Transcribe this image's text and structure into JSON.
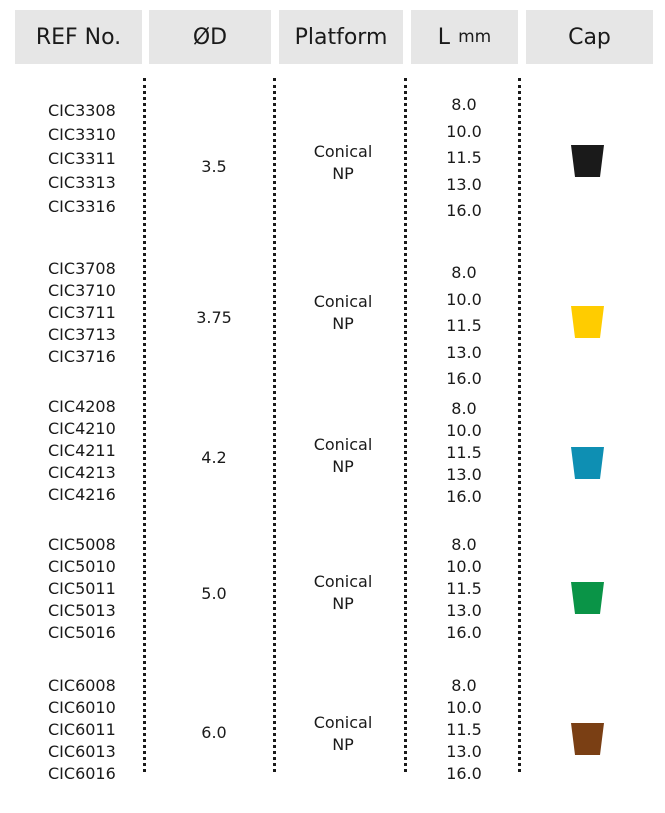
{
  "headers": {
    "ref": "REF No.",
    "diameter_symbol": "ØD",
    "platform": "Platform",
    "length": "L",
    "length_unit": "mm",
    "cap": "Cap"
  },
  "groups": [
    {
      "refs": [
        "CIC3308",
        "CIC3310",
        "CIC3311",
        "CIC3313",
        "CIC3316"
      ],
      "diameter": "3.5",
      "platform_line1": "Conical",
      "platform_line2": "NP",
      "lengths": [
        "8.0",
        "10.0",
        "11.5",
        "13.0",
        "16.0"
      ],
      "cap_color": "#1a1a1a"
    },
    {
      "refs": [
        "CIC3708",
        "CIC3710",
        "CIC3711",
        "CIC3713",
        "CIC3716"
      ],
      "diameter": "3.75",
      "platform_line1": "Conical",
      "platform_line2": "NP",
      "lengths": [
        "8.0",
        "10.0",
        "11.5",
        "13.0",
        "16.0"
      ],
      "cap_color": "#ffcc00"
    },
    {
      "refs": [
        "CIC4208",
        "CIC4210",
        "CIC4211",
        "CIC4213",
        "CIC4216"
      ],
      "diameter": "4.2",
      "platform_line1": "Conical",
      "platform_line2": "NP",
      "lengths": [
        "8.0",
        "10.0",
        "11.5",
        "13.0",
        "16.0"
      ],
      "cap_color": "#0e8fb3"
    },
    {
      "refs": [
        "CIC5008",
        "CIC5010",
        "CIC5011",
        "CIC5013",
        "CIC5016"
      ],
      "diameter": "5.0",
      "platform_line1": "Conical",
      "platform_line2": "NP",
      "lengths": [
        "8.0",
        "10.0",
        "11.5",
        "13.0",
        "16.0"
      ],
      "cap_color": "#0a9447"
    },
    {
      "refs": [
        "CIC6008",
        "CIC6010",
        "CIC6011",
        "CIC6013",
        "CIC6016"
      ],
      "diameter": "6.0",
      "platform_line1": "Conical",
      "platform_line2": "NP",
      "lengths": [
        "8.0",
        "10.0",
        "11.5",
        "13.0",
        "16.0"
      ],
      "cap_color": "#7a3f14"
    }
  ]
}
